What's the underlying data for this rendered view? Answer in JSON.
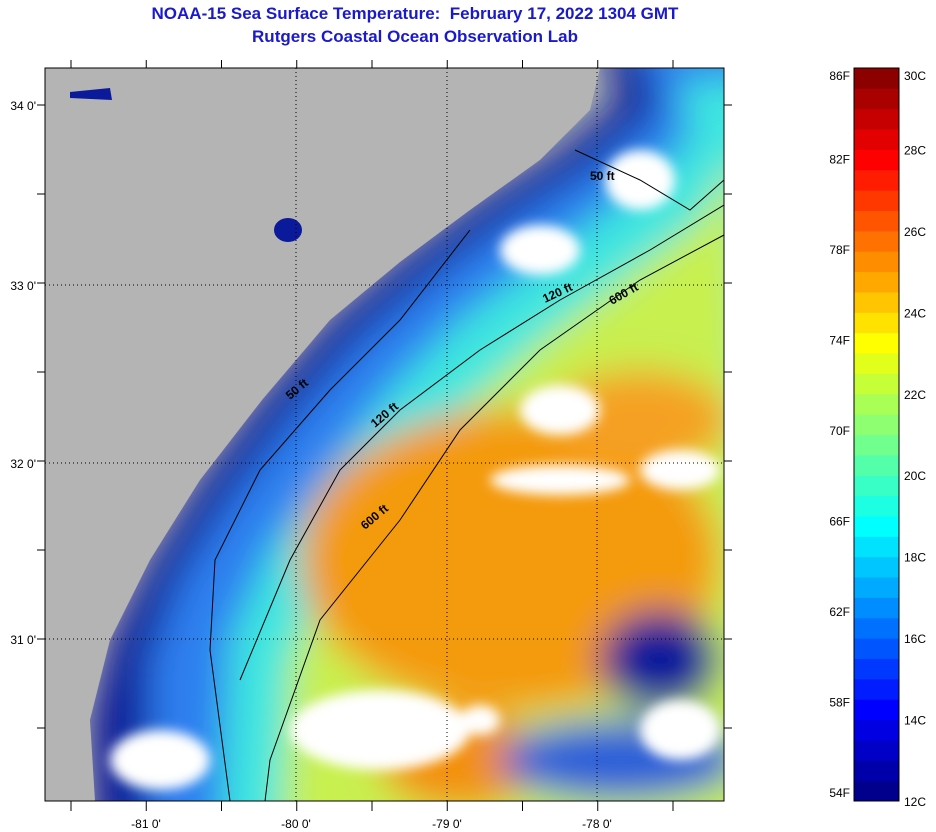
{
  "header": {
    "title": "NOAA-15 Sea Surface Temperature:  February 17, 2022 1304 GMT",
    "subtitle": "Rutgers Coastal Ocean Observation Lab"
  },
  "map": {
    "lon_labels": [
      "-81 0'",
      "-80 0'",
      "-79 0'",
      "-78 0'"
    ],
    "lat_labels": [
      "34 0'",
      "33 0'",
      "32 0'",
      "31 0'"
    ],
    "contour_labels": [
      "50 ft",
      "120 ft",
      "600 ft",
      "50 ft",
      "120 ft",
      "600 ft"
    ],
    "land_color": "#b4b4b4"
  },
  "colorbar": {
    "range_c": [
      12,
      30
    ],
    "f_labels": [
      "86F",
      "82F",
      "78F",
      "74F",
      "70F",
      "66F",
      "62F",
      "58F",
      "54F"
    ],
    "c_labels": [
      "30C",
      "28C",
      "26C",
      "24C",
      "22C",
      "20C",
      "18C",
      "16C",
      "14C",
      "12C"
    ]
  }
}
